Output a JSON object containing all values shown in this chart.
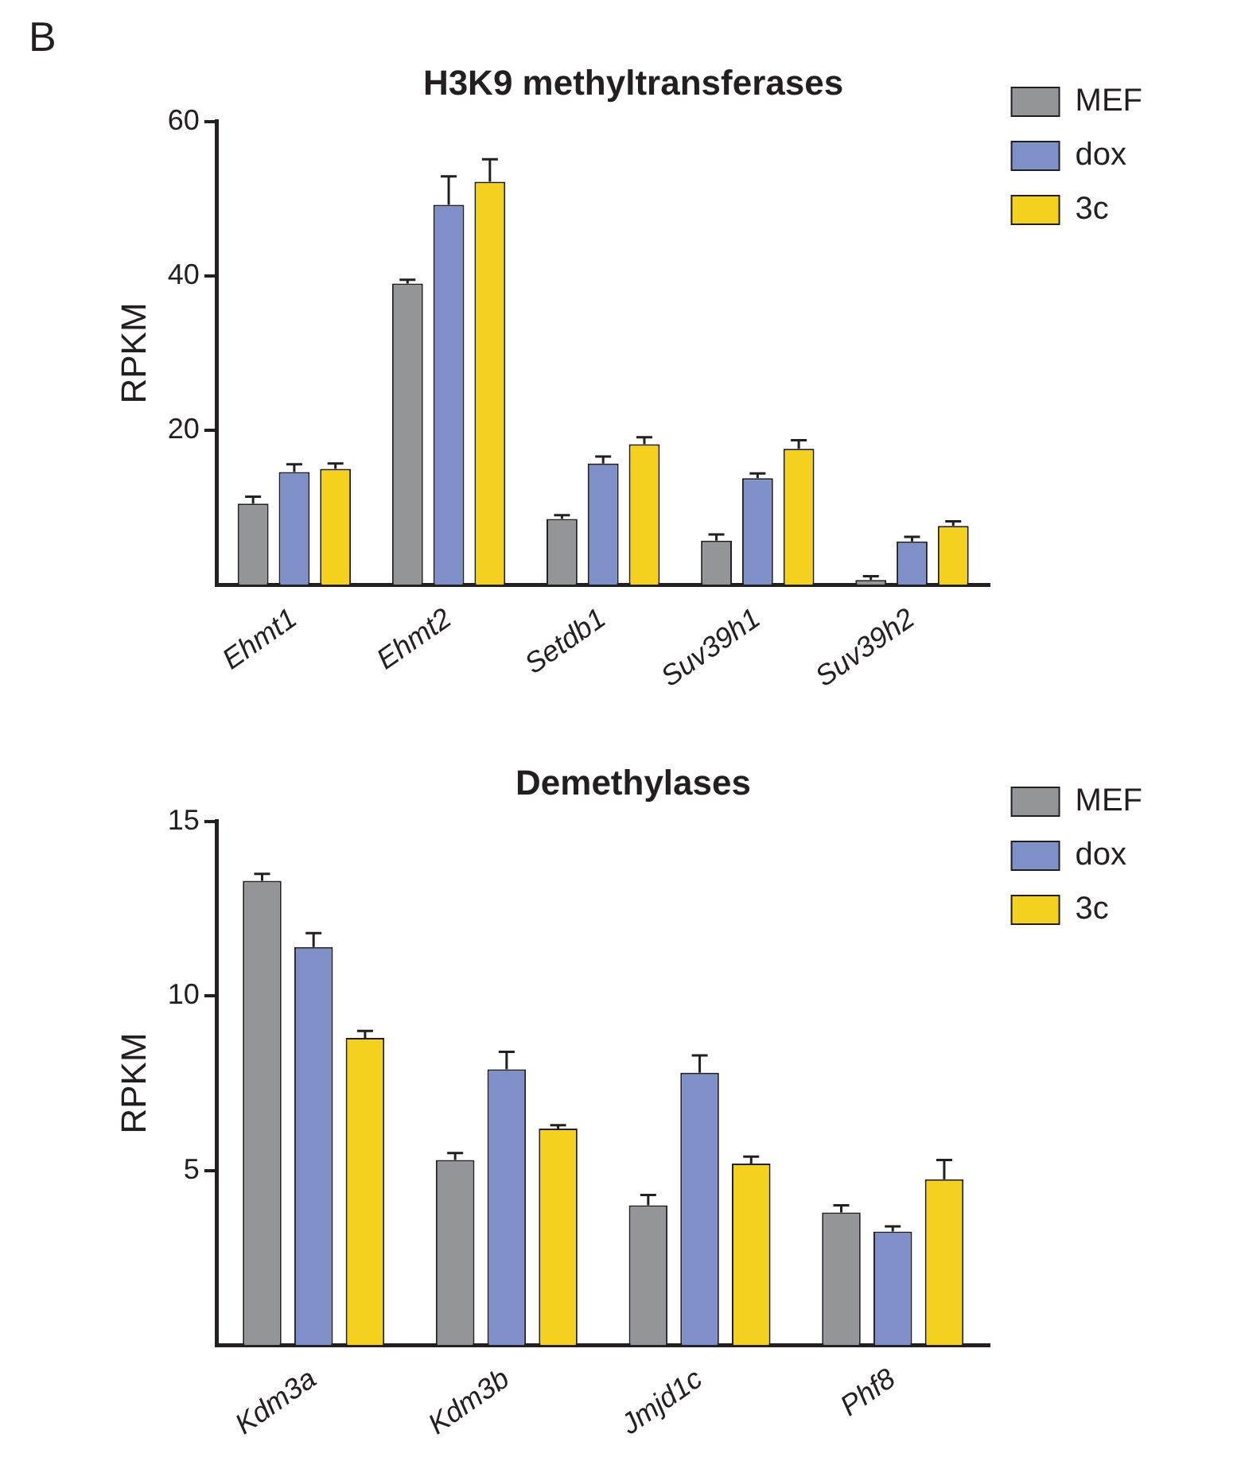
{
  "chart_data": [
    {
      "type": "bar",
      "title": "H3K9 methyltransferases",
      "ylabel": "RPKM",
      "annotations": [
        "B"
      ],
      "legend": "top right",
      "categories": [
        "Ehmt1",
        "Ehmt2",
        "Setdb1",
        "Suv39h1",
        "Suv39h2"
      ],
      "ylim": [
        0,
        60
      ],
      "yticks": [
        20,
        40,
        60
      ],
      "series": [
        {
          "name": "MEF",
          "color": "#939598",
          "values": [
            10.5,
            39.0,
            8.5,
            5.7,
            0.6
          ],
          "errors": [
            0.9,
            0.5,
            0.5,
            0.8,
            0.5
          ]
        },
        {
          "name": "dox",
          "color": "#7f90c9",
          "values": [
            14.6,
            49.2,
            15.7,
            13.8,
            5.6
          ],
          "errors": [
            1.0,
            3.7,
            0.9,
            0.6,
            0.6
          ]
        },
        {
          "name": "3c",
          "color": "#f5d11f",
          "values": [
            15.0,
            52.2,
            18.2,
            17.6,
            7.6
          ],
          "errors": [
            0.7,
            2.9,
            0.9,
            1.1,
            0.6
          ]
        }
      ]
    },
    {
      "type": "bar",
      "title": "Demethylases",
      "ylabel": "RPKM",
      "legend": "top right",
      "categories": [
        "Kdm3a",
        "Kdm3b",
        "Jmjd1c",
        "Phf8"
      ],
      "ylim": [
        0,
        15
      ],
      "yticks": [
        5,
        10,
        15
      ],
      "series": [
        {
          "name": "MEF",
          "color": "#939598",
          "values": [
            13.3,
            5.3,
            4.0,
            3.8
          ],
          "errors": [
            0.2,
            0.2,
            0.3,
            0.2
          ]
        },
        {
          "name": "dox",
          "color": "#7f90c9",
          "values": [
            11.4,
            7.9,
            7.8,
            3.25
          ],
          "errors": [
            0.4,
            0.5,
            0.5,
            0.15
          ]
        },
        {
          "name": "3c",
          "color": "#f5d11f",
          "values": [
            8.8,
            6.2,
            5.2,
            4.75
          ],
          "errors": [
            0.2,
            0.1,
            0.2,
            0.55
          ]
        }
      ]
    }
  ]
}
